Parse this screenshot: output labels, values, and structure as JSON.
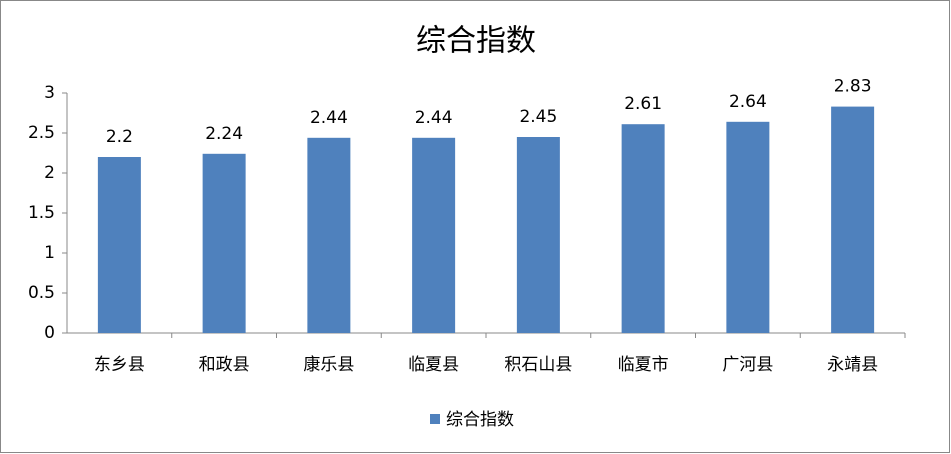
{
  "chart_data": {
    "type": "bar",
    "title": "综合指数",
    "categories": [
      "东乡县",
      "和政县",
      "康乐县",
      "临夏县",
      "积石山县",
      "临夏市",
      "广河县",
      "永靖县"
    ],
    "series": [
      {
        "name": "综合指数",
        "color": "#4f81bd",
        "values": [
          2.2,
          2.24,
          2.44,
          2.44,
          2.45,
          2.61,
          2.64,
          2.83
        ]
      }
    ],
    "ylim": [
      0,
      3
    ],
    "yticks": [
      0,
      0.5,
      1,
      1.5,
      2,
      2.5,
      3
    ],
    "grid": false,
    "legend": "bottom"
  }
}
